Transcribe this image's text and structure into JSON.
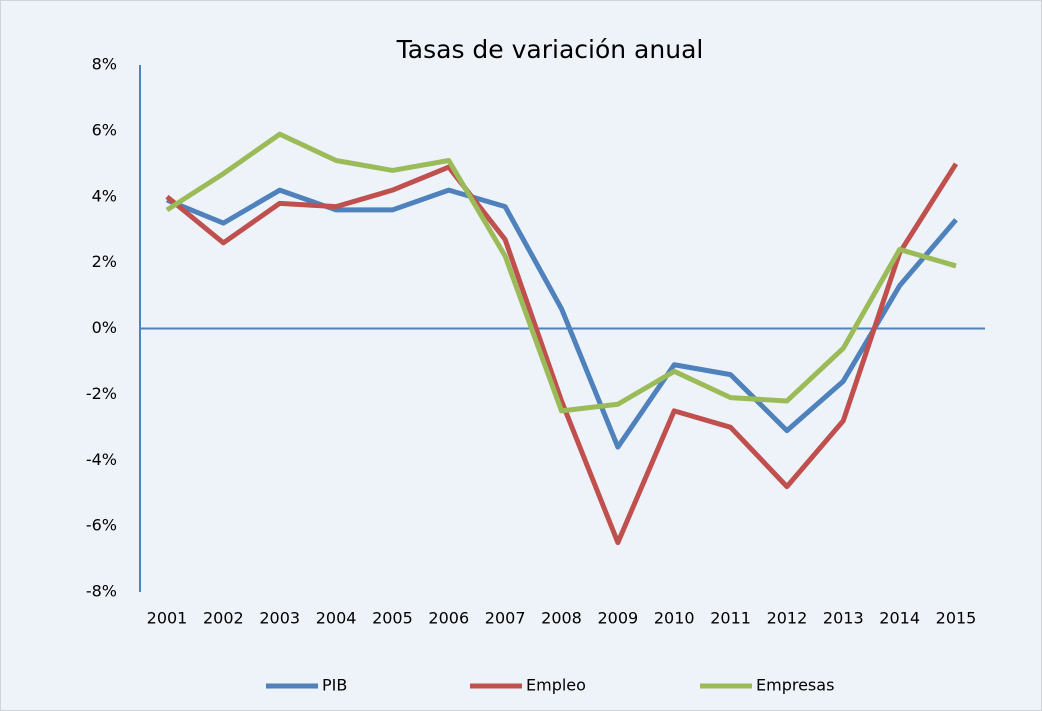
{
  "chart_data": {
    "type": "line",
    "title": "Tasas de variación anual",
    "categories": [
      "2001",
      "2002",
      "2003",
      "2004",
      "2005",
      "2006",
      "2007",
      "2008",
      "2009",
      "2010",
      "2011",
      "2012",
      "2013",
      "2014",
      "2015"
    ],
    "series": [
      {
        "name": "PIB",
        "color": "#4f81bd",
        "values": [
          3.9,
          3.2,
          4.2,
          3.6,
          3.6,
          4.2,
          3.7,
          0.6,
          -3.6,
          -1.1,
          -1.4,
          -3.1,
          -1.6,
          1.3,
          3.3
        ]
      },
      {
        "name": "Empleo",
        "color": "#c0504d",
        "values": [
          4.0,
          2.6,
          3.8,
          3.7,
          4.2,
          4.9,
          2.7,
          -2.2,
          -6.5,
          -2.5,
          -3.0,
          -4.8,
          -2.8,
          2.3,
          5.0
        ]
      },
      {
        "name": "Empresas",
        "color": "#9bbb59",
        "values": [
          3.6,
          4.7,
          5.9,
          5.1,
          4.8,
          5.1,
          2.2,
          -2.5,
          -2.3,
          -1.3,
          -2.1,
          -2.2,
          -0.6,
          2.4,
          1.9
        ]
      }
    ],
    "ylim": [
      -8,
      8
    ],
    "yticks": [
      {
        "value": -8,
        "label": "-8%"
      },
      {
        "value": -6,
        "label": "-6%"
      },
      {
        "value": -4,
        "label": "-4%"
      },
      {
        "value": -2,
        "label": "-2%"
      },
      {
        "value": 0,
        "label": "0%"
      },
      {
        "value": 2,
        "label": "2%"
      },
      {
        "value": 4,
        "label": "4%"
      },
      {
        "value": 6,
        "label": "6%"
      },
      {
        "value": 8,
        "label": "8%"
      }
    ],
    "legend": "bottom"
  }
}
